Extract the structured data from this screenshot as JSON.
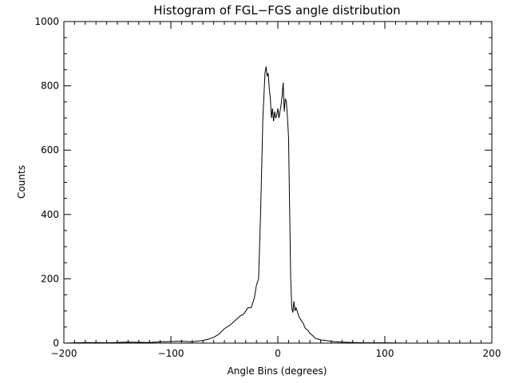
{
  "chart_data": {
    "type": "line",
    "title": "Histogram of FGL−FGS angle distribution",
    "xlabel": "Angle Bins (degrees)",
    "ylabel": "Counts",
    "xlim": [
      -200,
      200
    ],
    "ylim": [
      0,
      1000
    ],
    "x_ticks": [
      -200,
      -100,
      0,
      100,
      200
    ],
    "x_tick_labels": [
      "−200",
      "−100",
      "0",
      "100",
      "200"
    ],
    "y_ticks": [
      0,
      200,
      400,
      600,
      800,
      1000
    ],
    "y_tick_labels": [
      "0",
      "200",
      "400",
      "600",
      "800",
      "1000"
    ],
    "grid": false,
    "legend": "none",
    "line_color": "#000000",
    "series": [
      {
        "x": [
          -200,
          -180,
          -160,
          -140,
          -120,
          -110,
          -100,
          -90,
          -80,
          -70,
          -65,
          -60,
          -55,
          -50,
          -45,
          -40,
          -35,
          -32,
          -30,
          -28,
          -25,
          -22,
          -20,
          -18,
          -16,
          -14,
          -12,
          -11,
          -10,
          -9,
          -8,
          -7,
          -6,
          -5,
          -4,
          -3,
          -2,
          -1,
          0,
          1,
          2,
          3,
          4,
          5,
          6,
          7,
          8,
          9,
          10,
          11,
          12,
          13,
          14,
          15,
          16,
          17,
          18,
          19,
          20,
          22,
          24,
          25,
          26,
          28,
          30,
          32,
          35,
          40,
          45,
          50,
          55,
          60,
          70,
          80,
          100,
          120,
          140,
          160,
          180,
          200
        ],
        "y": [
          0,
          2,
          1,
          3,
          2,
          4,
          5,
          6,
          4,
          8,
          12,
          18,
          28,
          45,
          55,
          70,
          85,
          90,
          100,
          110,
          110,
          140,
          180,
          200,
          420,
          700,
          840,
          860,
          830,
          840,
          790,
          760,
          700,
          730,
          690,
          720,
          700,
          710,
          730,
          700,
          720,
          740,
          770,
          810,
          720,
          760,
          750,
          700,
          640,
          420,
          200,
          110,
          95,
          130,
          100,
          110,
          100,
          90,
          80,
          70,
          60,
          50,
          45,
          40,
          30,
          25,
          15,
          10,
          8,
          5,
          4,
          3,
          2,
          1,
          1,
          0,
          0,
          0,
          0,
          0
        ]
      }
    ]
  }
}
